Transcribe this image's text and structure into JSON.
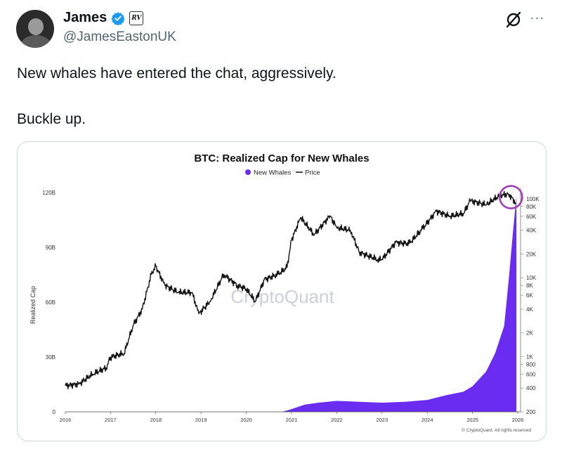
{
  "tweet": {
    "author": {
      "display_name": "James",
      "handle": "@JamesEastonUK",
      "verified_color": "#1d9bf0",
      "affiliate_badge": "RV"
    },
    "lines": [
      "New whales have entered the chat, aggressively.",
      "Buckle up."
    ],
    "actions": {
      "grok_icon": "grok-icon",
      "more_label": "···"
    }
  },
  "chart": {
    "title": "BTC: Realized Cap for New Whales",
    "watermark": "CryptoQuant",
    "copyright": "© CryptoQuant. All rights reserved",
    "colors": {
      "area": "#6a2cf0",
      "price": "#111111",
      "highlight": "#a13fb5"
    }
  },
  "chart_data": {
    "type": "area",
    "title": "BTC: Realized Cap for New Whales",
    "ylabel": "Realized Cap",
    "legend_position": "top-center",
    "x_ticks": [
      "2016",
      "2017",
      "2018",
      "2019",
      "2020",
      "2021",
      "2022",
      "2023",
      "2024",
      "2025",
      "2026"
    ],
    "y_left_ticks": [
      "0",
      "30B",
      "60B",
      "90B",
      "120B"
    ],
    "y_left_range": [
      0,
      120
    ],
    "y_right_ticks": [
      "200",
      "400",
      "600",
      "800",
      "1K",
      "2K",
      "4K",
      "6K",
      "8K",
      "10K",
      "20K",
      "40K",
      "60K",
      "80K",
      "100K"
    ],
    "y_right_scale": "log",
    "grid": false,
    "series": [
      {
        "name": "New Whales",
        "axis": "left",
        "kind": "area",
        "x": [
          2016.0,
          2020.8,
          2021.0,
          2021.3,
          2021.6,
          2022.0,
          2022.5,
          2023.0,
          2023.5,
          2024.0,
          2024.4,
          2024.8,
          2025.0,
          2025.3,
          2025.5,
          2025.7,
          2025.8,
          2025.9,
          2025.97
        ],
        "values": [
          0,
          0,
          1.5,
          4,
          5,
          6,
          5.5,
          5,
          5.5,
          6.5,
          9,
          11,
          14,
          22,
          32,
          47,
          72,
          100,
          118
        ]
      },
      {
        "name": "Price",
        "axis": "right",
        "kind": "line",
        "x": [
          2016.0,
          2016.3,
          2016.6,
          2016.9,
          2017.0,
          2017.3,
          2017.5,
          2017.7,
          2017.9,
          2018.0,
          2018.2,
          2018.5,
          2018.8,
          2018.95,
          2019.2,
          2019.5,
          2019.8,
          2020.0,
          2020.2,
          2020.4,
          2020.7,
          2020.9,
          2021.0,
          2021.2,
          2021.5,
          2021.85,
          2022.0,
          2022.3,
          2022.5,
          2022.9,
          2023.0,
          2023.3,
          2023.6,
          2023.9,
          2024.2,
          2024.5,
          2024.8,
          2024.95,
          2025.3,
          2025.6,
          2025.8,
          2025.95
        ],
        "values": [
          430,
          450,
          600,
          720,
          990,
          1100,
          2500,
          4000,
          11000,
          14000,
          8000,
          6500,
          6500,
          3500,
          5000,
          11000,
          8000,
          7200,
          5000,
          9500,
          11000,
          13500,
          30000,
          58000,
          35000,
          61000,
          43000,
          40000,
          21000,
          17000,
          17000,
          28000,
          27000,
          42000,
          70000,
          60000,
          65000,
          95000,
          84000,
          110000,
          115000,
          90000
        ]
      }
    ]
  }
}
